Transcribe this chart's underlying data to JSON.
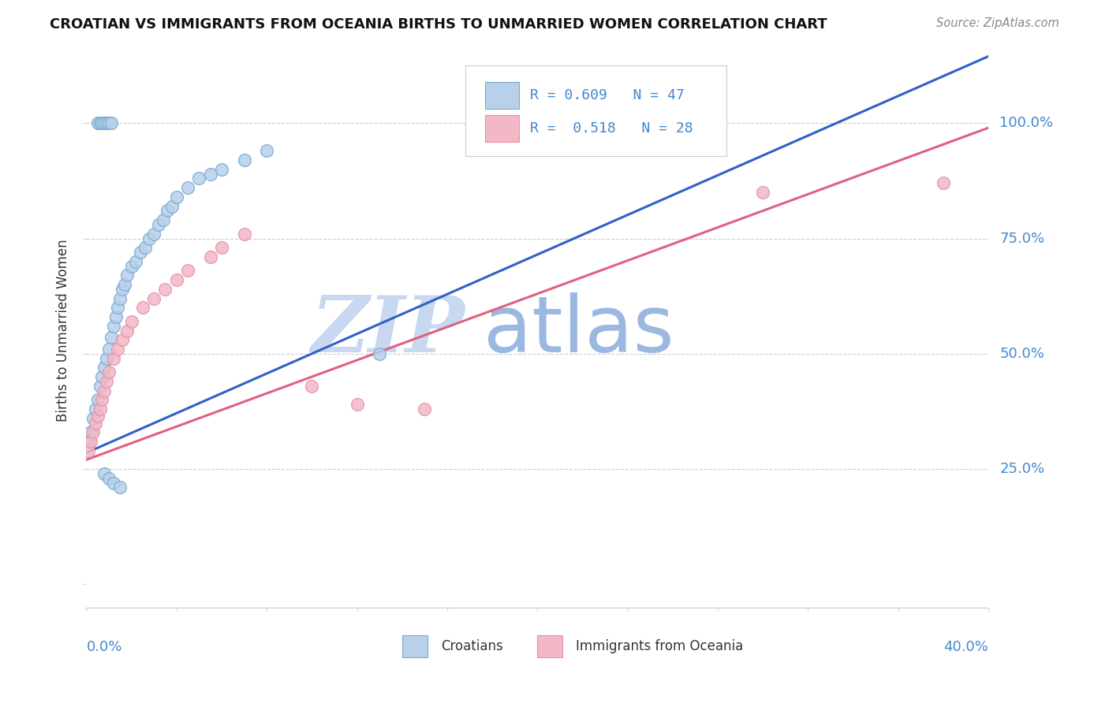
{
  "title": "CROATIAN VS IMMIGRANTS FROM OCEANIA BIRTHS TO UNMARRIED WOMEN CORRELATION CHART",
  "source": "Source: ZipAtlas.com",
  "ylabel": "Births to Unmarried Women",
  "yaxis_labels": [
    "25.0%",
    "50.0%",
    "75.0%",
    "100.0%"
  ],
  "croatian_R": "0.609",
  "croatian_N": "47",
  "oceania_R": "0.518",
  "oceania_N": "28",
  "legend_label1": "Croatians",
  "legend_label2": "Immigrants from Oceania",
  "blue_fill": "#b8d0ea",
  "pink_fill": "#f2b8c6",
  "blue_edge": "#7aaad0",
  "pink_edge": "#e890a8",
  "blue_line": "#3060c8",
  "pink_line": "#e06080",
  "watermark_zip": "#c8d8f0",
  "watermark_atlas": "#9ab8e0",
  "xlim": [
    0.0,
    0.4
  ],
  "ylim": [
    -0.05,
    1.15
  ],
  "yticks": [
    0.0,
    0.25,
    0.5,
    0.75,
    1.0
  ],
  "xtick_count": 11,
  "blue_line_x0": 0.0,
  "blue_line_y0": 0.285,
  "blue_line_slope": 2.15,
  "pink_line_x0": 0.0,
  "pink_line_y0": 0.27,
  "pink_line_slope": 1.8,
  "blue_x": [
    0.001,
    0.002,
    0.003,
    0.004,
    0.005,
    0.006,
    0.007,
    0.008,
    0.009,
    0.01,
    0.011,
    0.012,
    0.013,
    0.014,
    0.015,
    0.016,
    0.017,
    0.018,
    0.02,
    0.022,
    0.024,
    0.026,
    0.028,
    0.03,
    0.032,
    0.034,
    0.036,
    0.038,
    0.04,
    0.045,
    0.05,
    0.055,
    0.06,
    0.07,
    0.08,
    0.005,
    0.006,
    0.007,
    0.008,
    0.009,
    0.01,
    0.011,
    0.008,
    0.01,
    0.012,
    0.015,
    0.13
  ],
  "blue_y": [
    0.31,
    0.33,
    0.36,
    0.38,
    0.4,
    0.43,
    0.45,
    0.47,
    0.49,
    0.51,
    0.535,
    0.56,
    0.58,
    0.6,
    0.62,
    0.64,
    0.65,
    0.67,
    0.69,
    0.7,
    0.72,
    0.73,
    0.75,
    0.76,
    0.78,
    0.79,
    0.81,
    0.82,
    0.84,
    0.86,
    0.88,
    0.89,
    0.9,
    0.92,
    0.94,
    1.0,
    1.0,
    1.0,
    1.0,
    1.0,
    1.0,
    1.0,
    0.24,
    0.23,
    0.22,
    0.21,
    0.5
  ],
  "pink_x": [
    0.001,
    0.002,
    0.003,
    0.004,
    0.005,
    0.006,
    0.007,
    0.008,
    0.009,
    0.01,
    0.012,
    0.014,
    0.016,
    0.018,
    0.02,
    0.025,
    0.03,
    0.035,
    0.04,
    0.045,
    0.055,
    0.06,
    0.07,
    0.1,
    0.12,
    0.15,
    0.3,
    0.38
  ],
  "pink_y": [
    0.29,
    0.31,
    0.33,
    0.35,
    0.365,
    0.38,
    0.4,
    0.42,
    0.44,
    0.46,
    0.49,
    0.51,
    0.53,
    0.55,
    0.57,
    0.6,
    0.62,
    0.64,
    0.66,
    0.68,
    0.71,
    0.73,
    0.76,
    0.43,
    0.39,
    0.38,
    0.85,
    0.87
  ]
}
